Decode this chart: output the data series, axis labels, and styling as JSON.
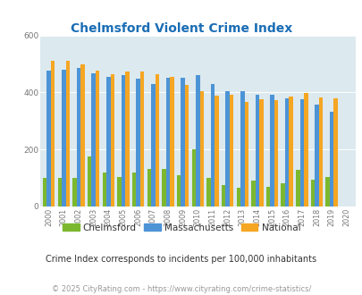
{
  "title": "Chelmsford Violent Crime Index",
  "years": [
    2000,
    2001,
    2002,
    2003,
    2004,
    2005,
    2006,
    2007,
    2008,
    2009,
    2010,
    2011,
    2012,
    2013,
    2014,
    2015,
    2016,
    2017,
    2018,
    2019,
    2020
  ],
  "chelmsford": [
    100,
    100,
    100,
    175,
    120,
    105,
    120,
    132,
    132,
    110,
    200,
    100,
    75,
    65,
    90,
    70,
    82,
    130,
    95,
    103,
    0
  ],
  "massachusetts": [
    475,
    480,
    485,
    468,
    455,
    460,
    448,
    430,
    450,
    452,
    462,
    428,
    405,
    405,
    393,
    393,
    380,
    376,
    358,
    333,
    0
  ],
  "national": [
    510,
    510,
    498,
    478,
    465,
    472,
    473,
    465,
    455,
    425,
    405,
    388,
    392,
    368,
    375,
    373,
    387,
    398,
    382,
    380,
    0
  ],
  "chelmsford_color": "#7cb82f",
  "massachusetts_color": "#4d94d6",
  "national_color": "#f5a623",
  "bg_color": "#dce9ef",
  "ylim": [
    0,
    600
  ],
  "yticks": [
    0,
    200,
    400,
    600
  ],
  "subtitle": "Crime Index corresponds to incidents per 100,000 inhabitants",
  "footer": "© 2025 CityRating.com - https://www.cityrating.com/crime-statistics/",
  "title_color": "#1a6db5",
  "subtitle_color": "#333333",
  "footer_color": "#999999",
  "tick_color": "#777777"
}
